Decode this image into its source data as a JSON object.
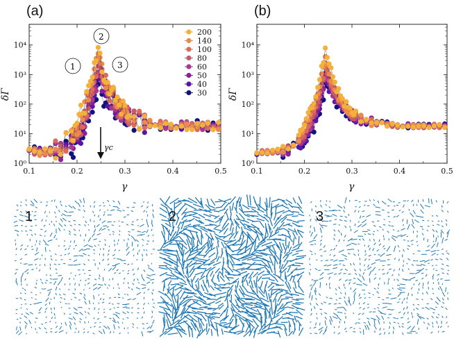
{
  "chart_data": [
    {
      "type": "scatter",
      "panel_label": "(a)",
      "xlabel": "γ",
      "ylabel": "δΓ",
      "xlim": [
        0.1,
        0.5
      ],
      "ylim": [
        1,
        50000
      ],
      "yscale": "log",
      "xticks": [
        "0.1",
        "0.2",
        "0.3",
        "0.4",
        "0.5"
      ],
      "yticks": [
        "10⁰",
        "10¹",
        "10²",
        "10³",
        "10⁴"
      ],
      "legend_position": "top-right",
      "series": [
        {
          "name": "200",
          "color": "#f3b13c",
          "peak": 7000,
          "width": 0.016,
          "noise": 0.35
        },
        {
          "name": "140",
          "color": "#ec8a4b",
          "peak": 4500,
          "width": 0.018,
          "noise": 0.33
        },
        {
          "name": "100",
          "color": "#da6a59",
          "peak": 2600,
          "width": 0.021,
          "noise": 0.32
        },
        {
          "name": "80",
          "color": "#c65a6d",
          "peak": 1800,
          "width": 0.023,
          "noise": 0.3
        },
        {
          "name": "60",
          "color": "#a73a8a",
          "peak": 1100,
          "width": 0.026,
          "noise": 0.32
        },
        {
          "name": "50",
          "color": "#8b219a",
          "peak": 850,
          "width": 0.028,
          "noise": 0.34
        },
        {
          "name": "40",
          "color": "#5b14a8",
          "peak": 650,
          "width": 0.03,
          "noise": 0.36
        },
        {
          "name": "30",
          "color": "#12127f",
          "peak": 420,
          "width": 0.034,
          "noise": 0.45
        }
      ],
      "annotations": [
        {
          "text": "1",
          "x": 0.185,
          "y": 1700
        },
        {
          "text": "2",
          "x": 0.243,
          "y": 18000
        },
        {
          "text": "3",
          "x": 0.287,
          "y": 1800
        },
        {
          "text": "γc",
          "x": 0.247,
          "y": 6
        }
      ]
    },
    {
      "type": "scatter",
      "panel_label": "(b)",
      "xlabel": "γ",
      "ylabel": "δΓ",
      "xlim": [
        0.1,
        0.5
      ],
      "ylim": [
        1,
        50000
      ],
      "yscale": "log",
      "xticks": [
        "0.1",
        "0.2",
        "0.3",
        "0.4",
        "0.5"
      ],
      "yticks": [
        "10⁰",
        "10¹",
        "10²",
        "10³",
        "10⁴"
      ],
      "series": [
        {
          "name": "200",
          "color": "#f3b13c",
          "peak": 7000,
          "width": 0.016,
          "noise": 0.15
        },
        {
          "name": "140",
          "color": "#ec8a4b",
          "peak": 3600,
          "width": 0.018,
          "noise": 0.15
        },
        {
          "name": "100",
          "color": "#da6a59",
          "peak": 2200,
          "width": 0.02,
          "noise": 0.15
        },
        {
          "name": "80",
          "color": "#c65a6d",
          "peak": 1500,
          "width": 0.022,
          "noise": 0.15
        },
        {
          "name": "60",
          "color": "#a73a8a",
          "peak": 1000,
          "width": 0.025,
          "noise": 0.16
        },
        {
          "name": "50",
          "color": "#8b219a",
          "peak": 800,
          "width": 0.027,
          "noise": 0.17
        },
        {
          "name": "40",
          "color": "#5b14a8",
          "peak": 600,
          "width": 0.03,
          "noise": 0.18
        },
        {
          "name": "30",
          "color": "#12127f",
          "peak": 430,
          "width": 0.034,
          "noise": 0.22
        }
      ]
    }
  ],
  "snapshots": [
    {
      "label": "1",
      "color": "#1f78b4",
      "arrow_scale": 0.45
    },
    {
      "label": "2",
      "color": "#1f78b4",
      "arrow_scale": 1.0
    },
    {
      "label": "3",
      "color": "#1f78b4",
      "arrow_scale": 0.55
    }
  ]
}
